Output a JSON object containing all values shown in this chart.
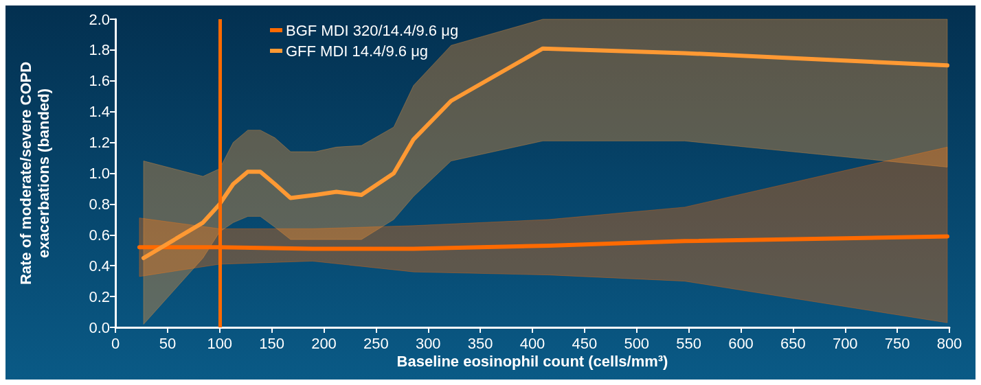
{
  "chart_data": {
    "type": "line",
    "xlabel": "Baseline eosinophil count (cells/mm³)",
    "ylabel": "Rate of moderate/severe COPD\nexacerbations (banded)",
    "xlim": [
      0,
      800
    ],
    "xticks": [
      0,
      50,
      100,
      150,
      200,
      250,
      300,
      350,
      400,
      450,
      500,
      550,
      600,
      650,
      700,
      750,
      800
    ],
    "ylim": [
      0,
      2
    ],
    "yticks": [
      {
        "value": 0,
        "label": "0.0"
      },
      0.2,
      0.4,
      0.6,
      0.8,
      {
        "value": 1,
        "label": "1.0"
      },
      1.2,
      1.4,
      1.6,
      1.8,
      {
        "value": 2,
        "label": "2.0"
      }
    ],
    "grid": false,
    "legend": "top left",
    "marker": "none",
    "line_style": "solid",
    "ref_lines": [
      {
        "axis": "x",
        "value": 100,
        "color": "#ff6a00"
      }
    ],
    "series": [
      {
        "name": "BGF MDI 320/14.4/9.6 μg",
        "color": "#ff6a00",
        "x": [
          23,
          100,
          189,
          286,
          416,
          546,
          798
        ],
        "values": [
          0.52,
          0.52,
          0.51,
          0.51,
          0.53,
          0.56,
          0.59
        ],
        "lower": [
          0.33,
          0.41,
          0.43,
          0.36,
          0.34,
          0.3,
          0.03
        ],
        "upper": [
          0.71,
          0.64,
          0.64,
          0.66,
          0.7,
          0.78,
          1.17
        ]
      },
      {
        "name": "GFF MDI 14.4/9.6 μg",
        "color": "#ff9933",
        "x": [
          27,
          84,
          100,
          113,
          127,
          139,
          153,
          168,
          192,
          212,
          236,
          267,
          286,
          322,
          410,
          546,
          798
        ],
        "values": [
          0.45,
          0.68,
          0.8,
          0.93,
          1.01,
          1.01,
          0.93,
          0.84,
          0.86,
          0.88,
          0.86,
          1.0,
          1.22,
          1.47,
          1.81,
          1.78,
          1.7
        ],
        "lower": [
          0.02,
          0.45,
          0.62,
          0.68,
          0.72,
          0.72,
          0.65,
          0.57,
          0.57,
          0.57,
          0.57,
          0.7,
          0.85,
          1.08,
          1.21,
          1.21,
          1.04
        ],
        "upper": [
          1.08,
          0.98,
          1.03,
          1.2,
          1.28,
          1.28,
          1.23,
          1.14,
          1.14,
          1.17,
          1.18,
          1.3,
          1.57,
          1.83,
          2.0,
          2.0,
          2.0
        ]
      }
    ]
  }
}
